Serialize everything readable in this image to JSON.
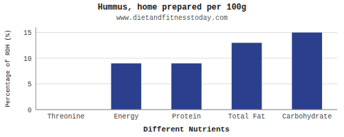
{
  "chart_data": {
    "type": "bar",
    "title": "Hummus, home prepared per 100g",
    "subtitle": "www.dietandfitnesstoday.com",
    "xlabel": "Different Nutrients",
    "ylabel": "Percentage of RDH (%)",
    "categories": [
      "Threonine",
      "Energy",
      "Protein",
      "Total Fat",
      "Carbohydrate"
    ],
    "values": [
      0,
      9,
      9,
      13,
      15
    ],
    "color": "#2b3f8c",
    "ylim": [
      0,
      16
    ],
    "yticks": [
      0,
      5,
      10,
      15
    ],
    "grid": true
  }
}
